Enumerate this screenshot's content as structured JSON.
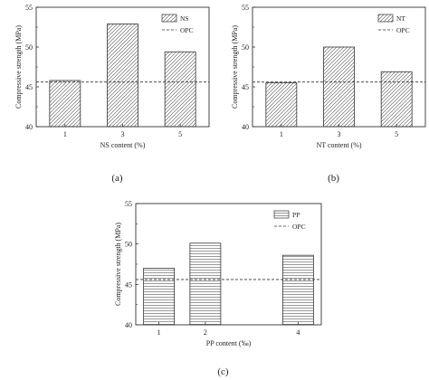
{
  "chart_data": [
    {
      "id": "a",
      "type": "bar",
      "panel_label": "(a)",
      "categories": [
        "1",
        "3",
        "5"
      ],
      "series": [
        {
          "name": "NS",
          "values": [
            45.8,
            52.9,
            49.4
          ]
        }
      ],
      "reference_line": {
        "name": "OPC",
        "value": 45.6
      },
      "xlabel": "NS content (%)",
      "ylabel": "Compressive strength (MPa)",
      "ylim": [
        40,
        55
      ],
      "yticks": [
        40,
        45,
        50,
        55
      ],
      "legend": "top-right",
      "grid": false,
      "bar_pattern": "diagonal-hatch"
    },
    {
      "id": "b",
      "type": "bar",
      "panel_label": "(b)",
      "categories": [
        "1",
        "3",
        "5"
      ],
      "series": [
        {
          "name": "NT",
          "values": [
            45.5,
            50.0,
            46.9
          ]
        }
      ],
      "reference_line": {
        "name": "OPC",
        "value": 45.6
      },
      "xlabel": "NT content (%)",
      "ylabel": "Compressive strength (MPa)",
      "ylim": [
        40,
        55
      ],
      "yticks": [
        40,
        45,
        50,
        55
      ],
      "legend": "top-right",
      "grid": false,
      "bar_pattern": "diagonal-hatch"
    },
    {
      "id": "c",
      "type": "bar",
      "panel_label": "(c)",
      "categories": [
        "1",
        "2",
        "4"
      ],
      "x": [
        1,
        2,
        4
      ],
      "xlim": [
        0.5,
        4.5
      ],
      "series": [
        {
          "name": "PP",
          "values": [
            47.0,
            50.1,
            48.6
          ]
        }
      ],
      "reference_line": {
        "name": "OPC",
        "value": 45.6
      },
      "xlabel": "PP content (‰)",
      "ylabel": "Compressive strength (MPa)",
      "ylim": [
        40,
        55
      ],
      "yticks": [
        40,
        45,
        50,
        55
      ],
      "legend": "top-right",
      "grid": false,
      "bar_pattern": "horizontal-lines"
    }
  ]
}
